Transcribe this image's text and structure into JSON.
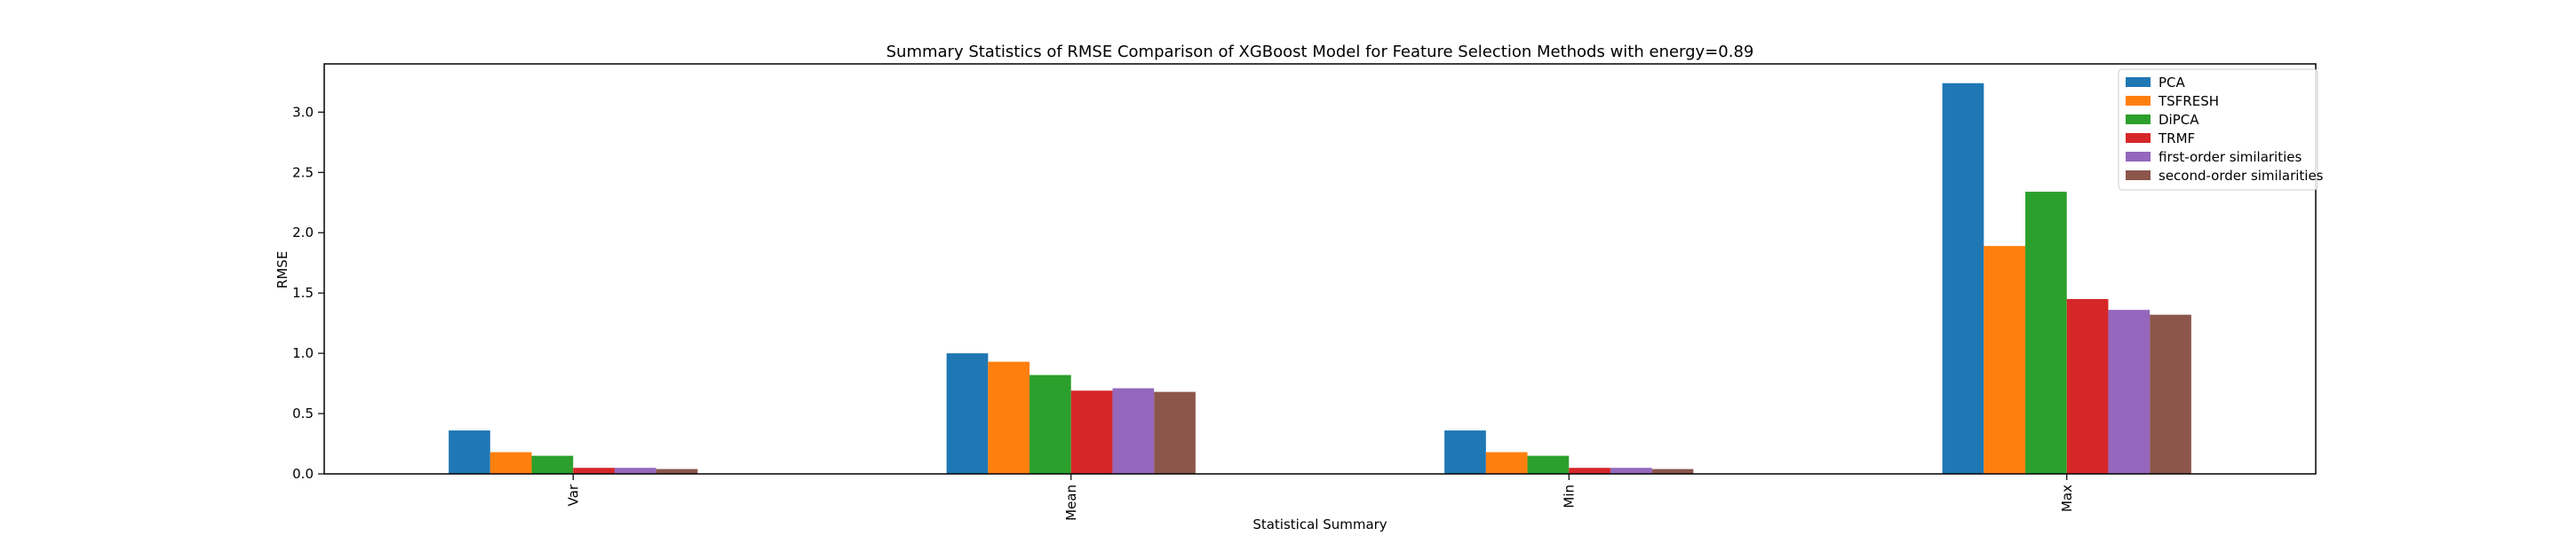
{
  "chart_data": {
    "type": "bar",
    "title": "Summary Statistics of RMSE Comparison of XGBoost Model for Feature Selection Methods with energy=0.89",
    "xlabel": "Statistical Summary",
    "ylabel": "RMSE",
    "categories": [
      "Var",
      "Mean",
      "Min",
      "Max"
    ],
    "ylim": [
      0,
      3.4
    ],
    "yticks": [
      0.0,
      0.5,
      1.0,
      1.5,
      2.0,
      2.5,
      3.0
    ],
    "ytick_labels": [
      "0.0",
      "0.5",
      "1.0",
      "1.5",
      "2.0",
      "2.5",
      "3.0"
    ],
    "grid": false,
    "legend_position": "top-right",
    "series": [
      {
        "name": "PCA",
        "color": "#1f77b4",
        "values": [
          0.36,
          1.0,
          0.36,
          3.24
        ]
      },
      {
        "name": "TSFRESH",
        "color": "#ff7f0e",
        "values": [
          0.18,
          0.93,
          0.18,
          1.89
        ]
      },
      {
        "name": "DiPCA",
        "color": "#2ca02c",
        "values": [
          0.15,
          0.82,
          0.15,
          2.34
        ]
      },
      {
        "name": "TRMF",
        "color": "#d62728",
        "values": [
          0.05,
          0.69,
          0.05,
          1.45
        ]
      },
      {
        "name": "first-order similarities",
        "color": "#9467bd",
        "values": [
          0.05,
          0.71,
          0.05,
          1.36
        ]
      },
      {
        "name": "second-order similarities",
        "color": "#8c564b",
        "values": [
          0.04,
          0.68,
          0.04,
          1.32
        ]
      }
    ]
  }
}
